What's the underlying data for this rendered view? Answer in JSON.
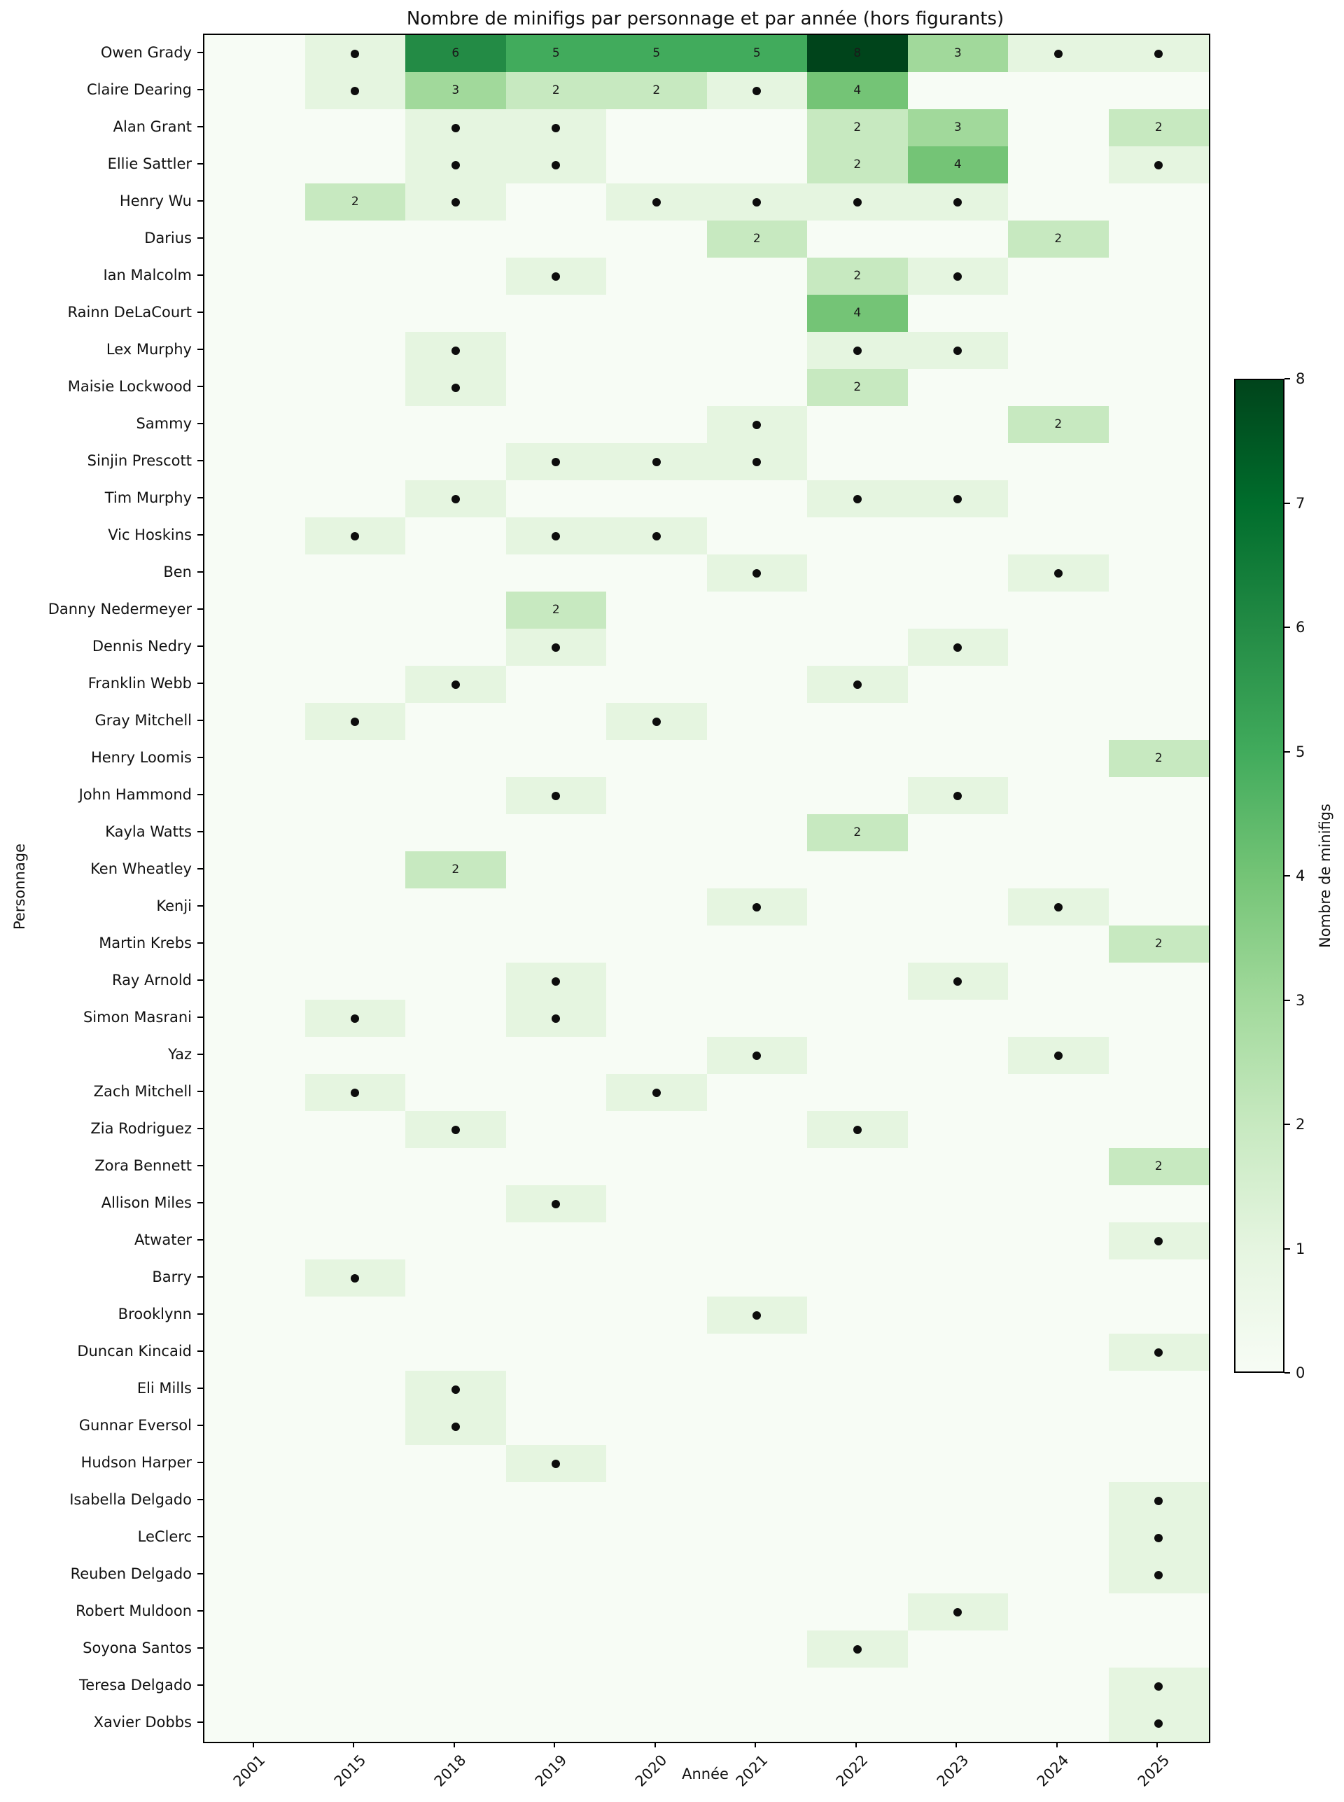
{
  "figure": {
    "background": "#ffffff"
  },
  "chart_data": {
    "type": "heatmap",
    "title": "Nombre de minifigs par personnage et par année (hors figurants)",
    "xlabel": "Année",
    "ylabel": "Personnage",
    "x_categories": [
      "2001",
      "2015",
      "2018",
      "2019",
      "2020",
      "2021",
      "2022",
      "2023",
      "2024",
      "2025"
    ],
    "y_categories": [
      "Owen Grady",
      "Claire Dearing",
      "Alan Grant",
      "Ellie Sattler",
      "Henry Wu",
      "Darius",
      "Ian Malcolm",
      "Rainn DeLaCourt",
      "Lex Murphy",
      "Maisie Lockwood",
      "Sammy",
      "Sinjin Prescott",
      "Tim Murphy",
      "Vic Hoskins",
      "Ben",
      "Danny Nedermeyer",
      "Dennis Nedry",
      "Franklin Webb",
      "Gray Mitchell",
      "Henry Loomis",
      "John Hammond",
      "Kayla Watts",
      "Ken Wheatley",
      "Kenji",
      "Martin Krebs",
      "Ray Arnold",
      "Simon Masrani",
      "Yaz",
      "Zach Mitchell",
      "Zia Rodriguez",
      "Zora Bennett",
      "Allison Miles",
      "Atwater",
      "Barry",
      "Brooklynn",
      "Duncan Kincaid",
      "Eli Mills",
      "Gunnar Eversol",
      "Hudson Harper",
      "Isabella Delgado",
      "LeClerc",
      "Reuben Delgado",
      "Robert Muldoon",
      "Soyona Santos",
      "Teresa Delgado",
      "Xavier Dobbs"
    ],
    "values": [
      [
        0,
        1,
        6,
        5,
        5,
        5,
        8,
        3,
        1,
        1
      ],
      [
        0,
        1,
        3,
        2,
        2,
        1,
        4,
        0,
        0,
        0
      ],
      [
        0,
        0,
        1,
        1,
        0,
        0,
        2,
        3,
        0,
        2
      ],
      [
        0,
        0,
        1,
        1,
        0,
        0,
        2,
        4,
        0,
        1
      ],
      [
        0,
        2,
        1,
        0,
        1,
        1,
        1,
        1,
        0,
        0
      ],
      [
        0,
        0,
        0,
        0,
        0,
        2,
        0,
        0,
        2,
        0
      ],
      [
        0,
        0,
        0,
        1,
        0,
        0,
        2,
        1,
        0,
        0
      ],
      [
        0,
        0,
        0,
        0,
        0,
        0,
        4,
        0,
        0,
        0
      ],
      [
        0,
        0,
        1,
        0,
        0,
        0,
        1,
        1,
        0,
        0
      ],
      [
        0,
        0,
        1,
        0,
        0,
        0,
        2,
        0,
        0,
        0
      ],
      [
        0,
        0,
        0,
        0,
        0,
        1,
        0,
        0,
        2,
        0
      ],
      [
        0,
        0,
        0,
        1,
        1,
        1,
        0,
        0,
        0,
        0
      ],
      [
        0,
        0,
        1,
        0,
        0,
        0,
        1,
        1,
        0,
        0
      ],
      [
        0,
        1,
        0,
        1,
        1,
        0,
        0,
        0,
        0,
        0
      ],
      [
        0,
        0,
        0,
        0,
        0,
        1,
        0,
        0,
        1,
        0
      ],
      [
        0,
        0,
        0,
        2,
        0,
        0,
        0,
        0,
        0,
        0
      ],
      [
        0,
        0,
        0,
        1,
        0,
        0,
        0,
        1,
        0,
        0
      ],
      [
        0,
        0,
        1,
        0,
        0,
        0,
        1,
        0,
        0,
        0
      ],
      [
        0,
        1,
        0,
        0,
        1,
        0,
        0,
        0,
        0,
        0
      ],
      [
        0,
        0,
        0,
        0,
        0,
        0,
        0,
        0,
        0,
        2
      ],
      [
        0,
        0,
        0,
        1,
        0,
        0,
        0,
        1,
        0,
        0
      ],
      [
        0,
        0,
        0,
        0,
        0,
        0,
        2,
        0,
        0,
        0
      ],
      [
        0,
        0,
        2,
        0,
        0,
        0,
        0,
        0,
        0,
        0
      ],
      [
        0,
        0,
        0,
        0,
        0,
        1,
        0,
        0,
        1,
        0
      ],
      [
        0,
        0,
        0,
        0,
        0,
        0,
        0,
        0,
        0,
        2
      ],
      [
        0,
        0,
        0,
        1,
        0,
        0,
        0,
        1,
        0,
        0
      ],
      [
        0,
        1,
        0,
        1,
        0,
        0,
        0,
        0,
        0,
        0
      ],
      [
        0,
        0,
        0,
        0,
        0,
        1,
        0,
        0,
        1,
        0
      ],
      [
        0,
        1,
        0,
        0,
        1,
        0,
        0,
        0,
        0,
        0
      ],
      [
        0,
        0,
        1,
        0,
        0,
        0,
        1,
        0,
        0,
        0
      ],
      [
        0,
        0,
        0,
        0,
        0,
        0,
        0,
        0,
        0,
        2
      ],
      [
        0,
        0,
        0,
        1,
        0,
        0,
        0,
        0,
        0,
        0
      ],
      [
        0,
        0,
        0,
        0,
        0,
        0,
        0,
        0,
        0,
        1
      ],
      [
        0,
        1,
        0,
        0,
        0,
        0,
        0,
        0,
        0,
        0
      ],
      [
        0,
        0,
        0,
        0,
        0,
        1,
        0,
        0,
        0,
        0
      ],
      [
        0,
        0,
        0,
        0,
        0,
        0,
        0,
        0,
        0,
        1
      ],
      [
        0,
        0,
        1,
        0,
        0,
        0,
        0,
        0,
        0,
        0
      ],
      [
        0,
        0,
        1,
        0,
        0,
        0,
        0,
        0,
        0,
        0
      ],
      [
        0,
        0,
        0,
        1,
        0,
        0,
        0,
        0,
        0,
        0
      ],
      [
        0,
        0,
        0,
        0,
        0,
        0,
        0,
        0,
        0,
        1
      ],
      [
        0,
        0,
        0,
        0,
        0,
        0,
        0,
        0,
        0,
        1
      ],
      [
        0,
        0,
        0,
        0,
        0,
        0,
        0,
        0,
        0,
        1
      ],
      [
        0,
        0,
        0,
        0,
        0,
        0,
        0,
        1,
        0,
        0
      ],
      [
        0,
        0,
        0,
        0,
        0,
        0,
        1,
        0,
        0,
        0
      ],
      [
        0,
        0,
        0,
        0,
        0,
        0,
        0,
        0,
        0,
        1
      ],
      [
        0,
        0,
        0,
        0,
        0,
        0,
        0,
        0,
        0,
        1
      ]
    ],
    "annotation_rule": "value 1 drawn as black dot, values >= 2 drawn as number, 0 empty",
    "colormap_name": "Greens",
    "colormap_anchors": [
      "#f7fcf5",
      "#e5f5e0",
      "#c7e9c0",
      "#a1d99b",
      "#74c476",
      "#41ab5c",
      "#238b45",
      "#006d2c",
      "#00441b"
    ],
    "dot_color": "#0d0d0d",
    "annotation_text_color": "#1a1a1a",
    "grid": false,
    "colorbar": {
      "label": "Nombre de minifigs",
      "min": 0,
      "max": 8,
      "ticks": [
        "0",
        "1",
        "2",
        "3",
        "4",
        "5",
        "6",
        "7",
        "8"
      ],
      "position": "right"
    }
  }
}
